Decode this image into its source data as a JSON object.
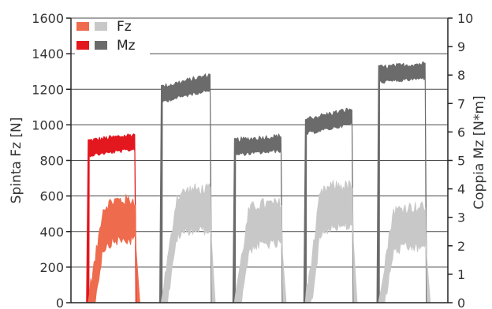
{
  "chart_data": {
    "type": "area",
    "xlabel": "",
    "ylabel": "Spinta Fz [N]",
    "y2label": "Coppia Mz [N*m]",
    "ylim": [
      0,
      1600
    ],
    "y2lim": [
      0,
      10
    ],
    "yticks": [
      "0",
      "200",
      "400",
      "600",
      "800",
      "1000",
      "1200",
      "1400",
      "1600"
    ],
    "y2ticks": [
      "0",
      "1",
      "2",
      "3",
      "4",
      "5",
      "6",
      "7",
      "8",
      "9",
      "10"
    ],
    "grid": true,
    "legend": {
      "placement": "top-left",
      "entries": [
        {
          "label": "Fz",
          "colors": [
            "#ee6b4d",
            "#c8c8c8"
          ]
        },
        {
          "label": "Mz",
          "colors": [
            "#e3171e",
            "#6b6b6b"
          ]
        }
      ]
    },
    "cycles": [
      {
        "highlight": true,
        "start": 7,
        "end": 30,
        "fz_low": 350,
        "fz_high": 500,
        "mz_low": 5.4,
        "mz_high": 5.7
      },
      {
        "highlight": false,
        "start": 40,
        "end": 64,
        "fz_low": 420,
        "fz_high": 560,
        "mz_low": 7.2,
        "mz_high": 7.8
      },
      {
        "highlight": false,
        "start": 73,
        "end": 96,
        "fz_low": 380,
        "fz_high": 480,
        "mz_low": 5.45,
        "mz_high": 5.65
      },
      {
        "highlight": false,
        "start": 105,
        "end": 128,
        "fz_low": 420,
        "fz_high": 580,
        "mz_low": 6.1,
        "mz_high": 6.6
      },
      {
        "highlight": false,
        "start": 138,
        "end": 161,
        "fz_low": 380,
        "fz_high": 460,
        "mz_low": 8.0,
        "mz_high": 8.2
      }
    ],
    "xlim": [
      0,
      170
    ],
    "colors": {
      "mz_highlight": "#e3171e",
      "fz_highlight": "#ee6b4d",
      "mz": "#6b6b6b",
      "fz": "#c8c8c8"
    }
  }
}
